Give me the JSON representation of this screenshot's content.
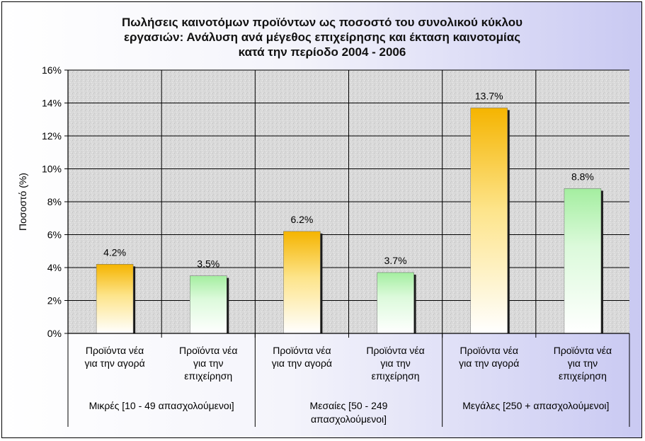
{
  "chart_data": {
    "type": "bar",
    "title": [
      "Πωλήσεις καινοτόμων προϊόντων ως ποσοστό του συνολικού κύκλου",
      "εργασιών: Ανάλυση ανά μέγεθος επιχείρησης και έκταση καινοτομίας",
      "κατά την περίοδο 2004 - 2006"
    ],
    "ylabel": "Ποσοστό (%)",
    "ylim": [
      0,
      16
    ],
    "yticks": [
      "0%",
      "2%",
      "4%",
      "6%",
      "8%",
      "10%",
      "12%",
      "14%",
      "16%"
    ],
    "grid": true,
    "categories": [
      {
        "lines": [
          "Προϊόντα νέα",
          "για την αγορά"
        ]
      },
      {
        "lines": [
          "Προϊόντα νέα",
          "για την",
          "επιχείρηση"
        ]
      },
      {
        "lines": [
          "Προϊόντα νέα",
          "για την αγορά"
        ]
      },
      {
        "lines": [
          "Προϊόντα νέα",
          "για την",
          "επιχείρηση"
        ]
      },
      {
        "lines": [
          "Προϊόντα νέα",
          "για την αγορά"
        ]
      },
      {
        "lines": [
          "Προϊόντα νέα",
          "για την",
          "επιχείρηση"
        ]
      }
    ],
    "groups": [
      {
        "lines": [
          "Μικρές [10 - 49 απασχολούμενοι]"
        ]
      },
      {
        "lines": [
          "Μεσαίες [50 - 249",
          "απασχολούμενοι]"
        ]
      },
      {
        "lines": [
          "Μεγάλες [250 + απασχολούμενοι]"
        ]
      }
    ],
    "values": [
      4.2,
      3.5,
      6.2,
      3.7,
      13.7,
      8.8
    ],
    "labels": [
      "4.2%",
      "3.5%",
      "6.2%",
      "3.7%",
      "13.7%",
      "8.8%"
    ],
    "bar_colors": [
      "#f5b800",
      "#a7f0a0",
      "#f5b800",
      "#a7f0a0",
      "#f5b800",
      "#a7f0a0"
    ]
  }
}
